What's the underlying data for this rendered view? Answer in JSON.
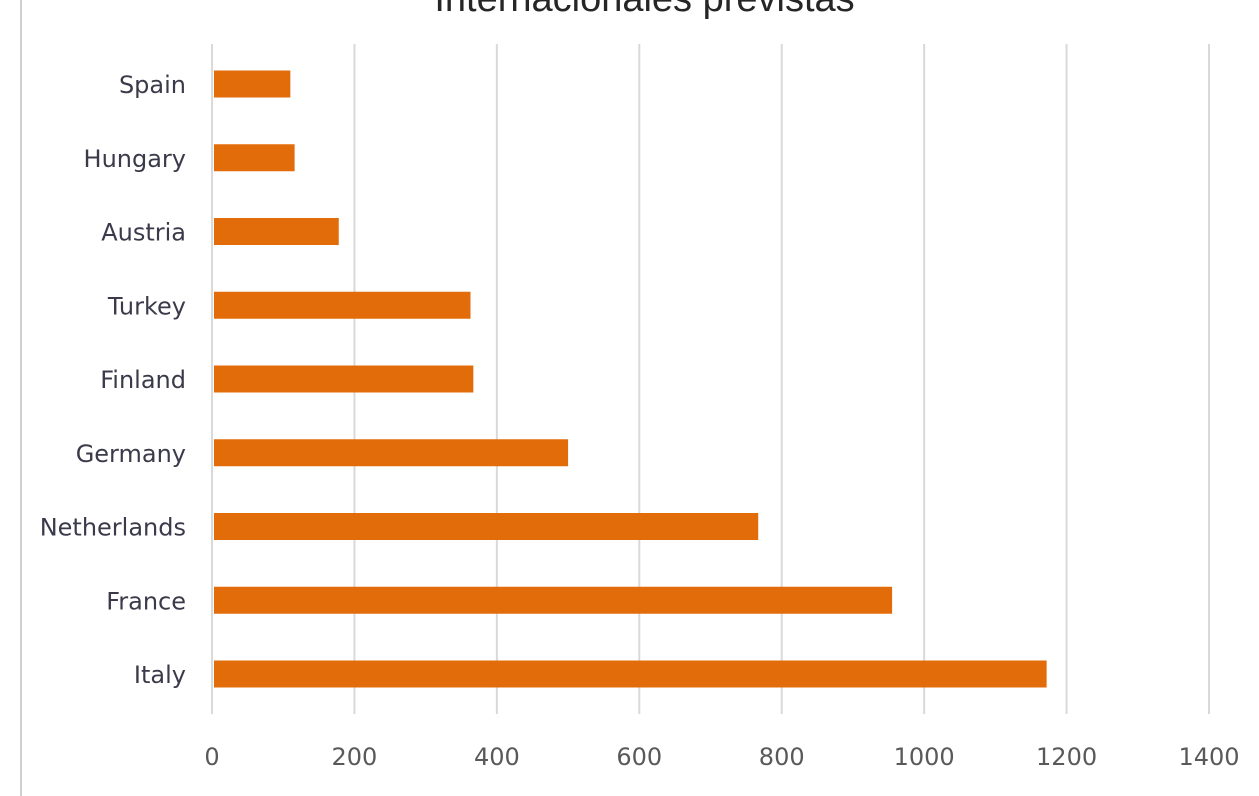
{
  "chart_data": {
    "type": "bar",
    "orientation": "horizontal",
    "title": "Internacionales previstas",
    "categories": [
      "Spain",
      "Hungary",
      "Austria",
      "Turkey",
      "Finland",
      "Germany",
      "Netherlands",
      "France",
      "Italy"
    ],
    "values": [
      110,
      116,
      178,
      363,
      367,
      500,
      767,
      955,
      1172
    ],
    "xlim": [
      0,
      1400
    ],
    "xticks": [
      0,
      200,
      400,
      600,
      800,
      1000,
      1200,
      1400
    ],
    "xlabel": "",
    "ylabel": "",
    "grid": "vertical",
    "legend": "none",
    "bar_color": "#e36c0a"
  }
}
